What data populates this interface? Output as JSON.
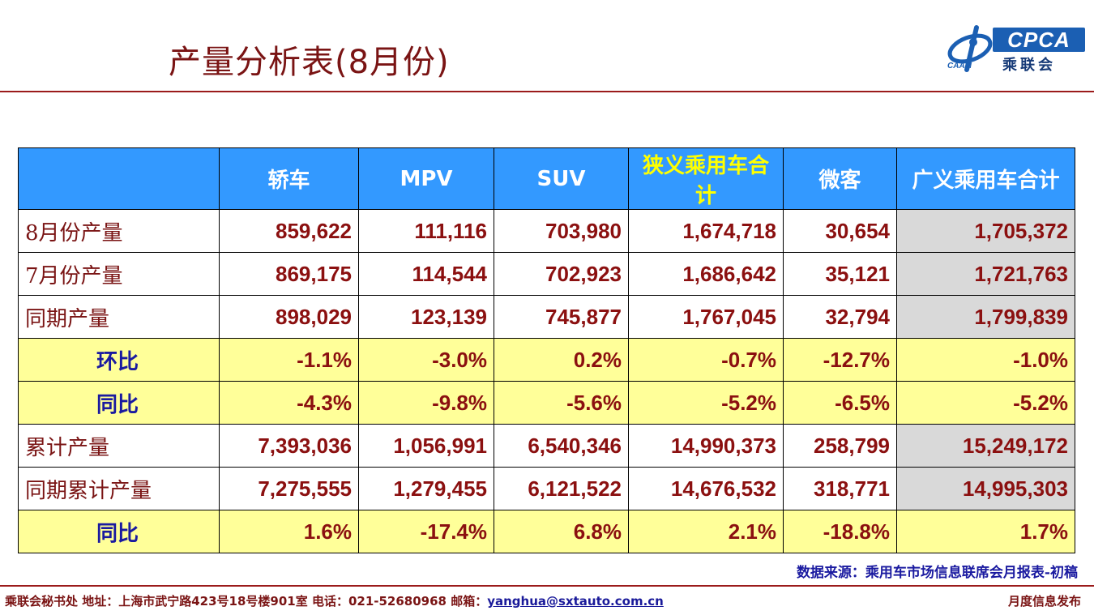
{
  "title": "产量分析表(8月份)",
  "logo": {
    "brand": "CPCA",
    "cn_name": "乘联会",
    "sub": "CAAM"
  },
  "table": {
    "headers": [
      "",
      "轿车",
      "MPV",
      "SUV",
      "狭义乘用车合计",
      "微客",
      "广义乘用车合计"
    ],
    "rows": [
      {
        "label": "8月份产量",
        "values": [
          "859,622",
          "111,116",
          "703,980",
          "1,674,718",
          "30,654",
          "1,705,372"
        ]
      },
      {
        "label": "7月份产量",
        "values": [
          "869,175",
          "114,544",
          "702,923",
          "1,686,642",
          "35,121",
          "1,721,763"
        ]
      },
      {
        "label": "同期产量",
        "values": [
          "898,029",
          "123,139",
          "745,877",
          "1,767,045",
          "32,794",
          "1,799,839"
        ]
      },
      {
        "label": "环比",
        "values": [
          "-1.1%",
          "-3.0%",
          "0.2%",
          "-0.7%",
          "-12.7%",
          "-1.0%"
        ]
      },
      {
        "label": "同比",
        "values": [
          "-4.3%",
          "-9.8%",
          "-5.6%",
          "-5.2%",
          "-6.5%",
          "-5.2%"
        ]
      },
      {
        "label": "累计产量",
        "values": [
          "7,393,036",
          "1,056,991",
          "6,540,346",
          "14,990,373",
          "258,799",
          "15,249,172"
        ]
      },
      {
        "label": "同期累计产量",
        "values": [
          "7,275,555",
          "1,279,455",
          "6,121,522",
          "14,676,532",
          "318,771",
          "14,995,303"
        ]
      },
      {
        "label": "同比",
        "values": [
          "1.6%",
          "-17.4%",
          "6.8%",
          "2.1%",
          "-18.8%",
          "1.7%"
        ]
      }
    ]
  },
  "source": "数据来源：乘用车市场信息联席会月报表-初稿",
  "footer": {
    "left_text": "乘联会秘书处   地址：上海市武宁路423号18号楼901室  电话：021-52680968   邮箱：",
    "email": "yanghua@sxtauto.com.cn",
    "right_text": "月度信息发布"
  },
  "colors": {
    "header_bg": "#3399ff",
    "highlight_header_text": "#ffff00",
    "ratio_row_bg": "#ffff99",
    "total_column_bg": "#d9d9d9",
    "rule": "#9b1b1b"
  }
}
